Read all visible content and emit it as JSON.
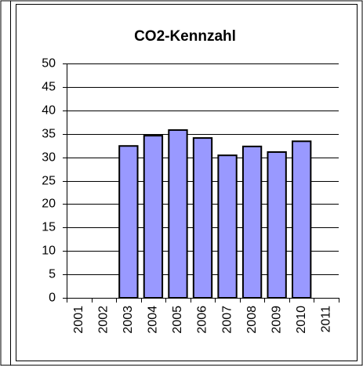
{
  "chart_data": {
    "type": "bar",
    "title": "CO2-Kennzahl",
    "categories": [
      "2001",
      "2002",
      "2003",
      "2004",
      "2005",
      "2006",
      "2007",
      "2008",
      "2009",
      "2010",
      "2011"
    ],
    "values": [
      null,
      null,
      32.4,
      34.6,
      35.8,
      34.1,
      30.4,
      32.3,
      31.1,
      33.4,
      null
    ],
    "color": "#9999ff",
    "ylim": [
      0,
      50
    ],
    "yticks": [
      0,
      5,
      10,
      15,
      20,
      25,
      30,
      35,
      40,
      45,
      50
    ],
    "grid": true
  }
}
